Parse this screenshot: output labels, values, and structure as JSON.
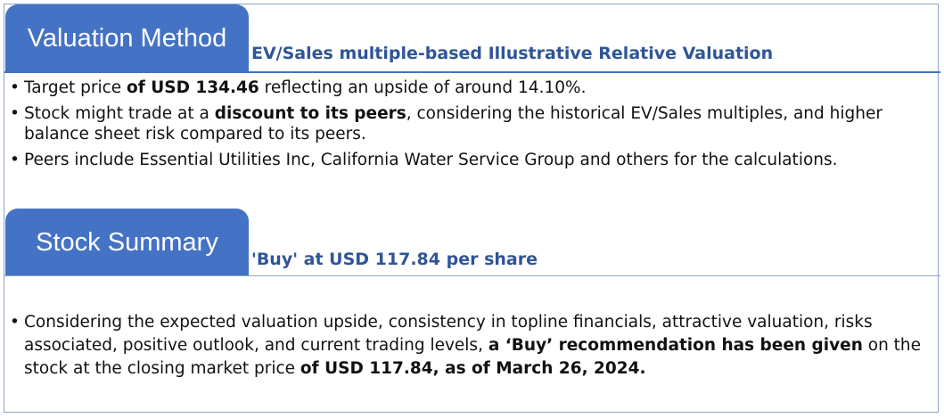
{
  "valuation": {
    "tab_title": "Valuation Method",
    "subtitle": "EV/Sales multiple-based Illustrative Relative Valuation",
    "bullets": [
      [
        {
          "t": "Target price ",
          "b": false
        },
        {
          "t": "of USD 134.46",
          "b": true
        },
        {
          "t": " reflecting an upside of around 14.10%.",
          "b": false
        }
      ],
      [
        {
          "t": " Stock might trade at a ",
          "b": false
        },
        {
          "t": "discount to its peers",
          "b": true
        },
        {
          "t": ", considering the historical EV/Sales multiples, and higher balance sheet risk compared to its peers.",
          "b": false
        }
      ],
      [
        {
          "t": " Peers include Essential Utilities Inc, California Water Service Group and others for the calculations.",
          "b": false
        }
      ]
    ]
  },
  "summary": {
    "tab_title": "Stock Summary",
    "subtitle": "'Buy' at USD 117.84 per share",
    "bullets": [
      [
        {
          "t": "Considering the expected valuation upside, consistency in topline financials, attractive valuation, risks associated, positive outlook, and current trading levels, ",
          "b": false
        },
        {
          "t": "a ‘Buy’ recommendation has been given",
          "b": true
        },
        {
          "t": " on the stock at the closing market price ",
          "b": false
        },
        {
          "t": "of USD 117.84, as of March 26, 2024.",
          "b": true
        }
      ]
    ]
  }
}
